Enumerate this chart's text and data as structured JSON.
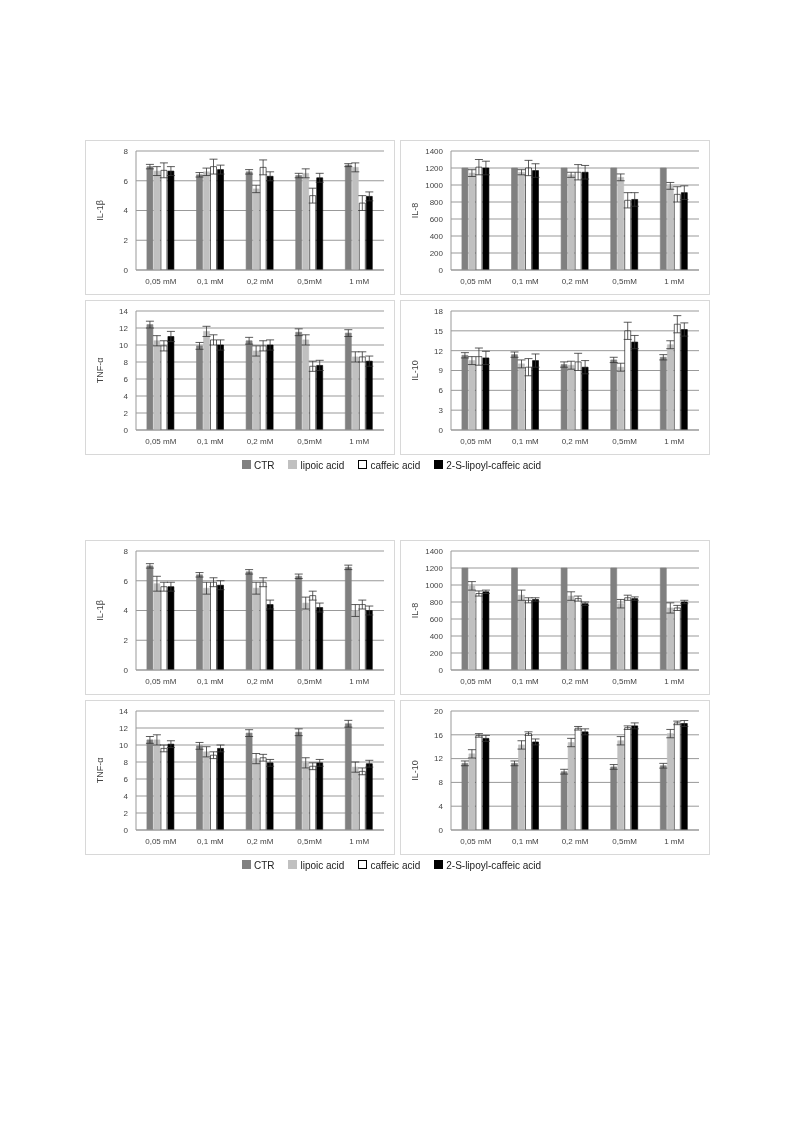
{
  "chart_data": [
    {
      "type": "bar",
      "ylabel": "IL-1β",
      "categories": [
        "0,05 mM",
        "0,1 mM",
        "0,2 mM",
        "0,5mM",
        "1 mM"
      ],
      "ylim": [
        0,
        8
      ],
      "yticks": [
        0,
        2,
        4,
        6,
        8
      ],
      "grid": "y",
      "series": [
        {
          "color": "#808080",
          "values": [
            6.95,
            6.4,
            6.6,
            6.35,
            7.05
          ],
          "errors": [
            0.15,
            0.15,
            0.15,
            0.15,
            0.1
          ]
        },
        {
          "color": "#c0c0c0",
          "values": [
            6.65,
            6.6,
            5.45,
            6.5,
            6.9
          ],
          "errors": [
            0.3,
            0.25,
            0.25,
            0.3,
            0.3
          ]
        },
        {
          "color": "#ffffff",
          "values": [
            6.7,
            6.95,
            6.9,
            5.0,
            4.5
          ],
          "errors": [
            0.5,
            0.5,
            0.5,
            0.5,
            0.5
          ]
        },
        {
          "color": "#000000",
          "values": [
            6.65,
            6.75,
            6.3,
            6.2,
            4.95
          ],
          "errors": [
            0.3,
            0.3,
            0.3,
            0.3,
            0.3
          ]
        }
      ]
    },
    {
      "type": "bar",
      "ylabel": "IL-8",
      "categories": [
        "0,05 mM",
        "0,1 mM",
        "0,2 mM",
        "0,5mM",
        "1 mM"
      ],
      "ylim": [
        0,
        1400
      ],
      "yticks": [
        0,
        200,
        400,
        600,
        800,
        1000,
        1200,
        1400
      ],
      "grid": "y",
      "series": [
        {
          "color": "#808080",
          "values": [
            1200,
            1200,
            1200,
            1200,
            1200
          ]
        },
        {
          "color": "#c0c0c0",
          "values": [
            1140,
            1150,
            1120,
            1090,
            990
          ],
          "errors": [
            40,
            30,
            30,
            40,
            40
          ]
        },
        {
          "color": "#ffffff",
          "values": [
            1210,
            1200,
            1150,
            820,
            890
          ],
          "errors": [
            90,
            90,
            90,
            90,
            90
          ]
        },
        {
          "color": "#000000",
          "values": [
            1200,
            1170,
            1150,
            830,
            910
          ],
          "errors": [
            80,
            80,
            80,
            80,
            80
          ]
        }
      ]
    },
    {
      "type": "bar",
      "ylabel": "TNF-α",
      "categories": [
        "0,05 mM",
        "0,1 mM",
        "0,2 mM",
        "0,5mM",
        "1 mM"
      ],
      "ylim": [
        0,
        14
      ],
      "yticks": [
        0,
        2,
        4,
        6,
        8,
        10,
        12,
        14
      ],
      "grid": "y",
      "legend": "bottom",
      "series": [
        {
          "name": "CTR",
          "color": "#808080",
          "values": [
            12.4,
            9.9,
            10.5,
            11.5,
            11.4
          ],
          "errors": [
            0.4,
            0.4,
            0.4,
            0.4,
            0.4
          ]
        },
        {
          "name": "lipoic acid",
          "color": "#c0c0c0",
          "values": [
            10.5,
            11.6,
            9.3,
            10.6,
            8.6
          ],
          "errors": [
            0.6,
            0.6,
            0.6,
            0.6,
            0.6
          ]
        },
        {
          "name": "caffeic acid",
          "color": "#ffffff",
          "values": [
            9.9,
            10.6,
            9.9,
            7.5,
            8.6
          ],
          "errors": [
            0.6,
            0.6,
            0.6,
            0.6,
            0.6
          ]
        },
        {
          "name": "2-S-lipoyl-caffeic acid",
          "color": "#000000",
          "values": [
            11.0,
            10.0,
            10.0,
            7.6,
            8.1
          ],
          "errors": [
            0.6,
            0.6,
            0.6,
            0.6,
            0.6
          ]
        }
      ]
    },
    {
      "type": "bar",
      "ylabel": "IL-10",
      "categories": [
        "0,05 mM",
        "0,1 mM",
        "0,2 mM",
        "0,5mM",
        "1 mM"
      ],
      "ylim": [
        0,
        18
      ],
      "yticks": [
        0,
        3,
        6,
        9,
        12,
        15,
        18
      ],
      "grid": "y",
      "series": [
        {
          "color": "#808080",
          "values": [
            11.3,
            11.4,
            9.9,
            10.6,
            11.0
          ],
          "errors": [
            0.4,
            0.4,
            0.4,
            0.4,
            0.4
          ]
        },
        {
          "color": "#c0c0c0",
          "values": [
            10.5,
            10.0,
            9.8,
            9.5,
            12.9
          ],
          "errors": [
            0.6,
            0.6,
            0.6,
            0.6,
            0.6
          ]
        },
        {
          "color": "#ffffff",
          "values": [
            11.1,
            9.5,
            10.3,
            15.0,
            16.0
          ],
          "errors": [
            1.3,
            1.3,
            1.3,
            1.3,
            1.3
          ]
        },
        {
          "color": "#000000",
          "values": [
            10.9,
            10.5,
            9.5,
            13.3,
            15.2
          ],
          "errors": [
            1.0,
            1.0,
            1.0,
            1.0,
            1.0
          ]
        }
      ]
    },
    {
      "type": "bar",
      "ylabel": "IL-1β",
      "categories": [
        "0,05 mM",
        "0,1 mM",
        "0,2 mM",
        "0,5mM",
        "1 mM"
      ],
      "ylim": [
        0,
        8
      ],
      "yticks": [
        0,
        2,
        4,
        6,
        8
      ],
      "grid": "y",
      "series": [
        {
          "color": "#808080",
          "values": [
            7.0,
            6.4,
            6.6,
            6.3,
            6.9
          ],
          "errors": [
            0.15,
            0.15,
            0.15,
            0.15,
            0.15
          ]
        },
        {
          "color": "#c0c0c0",
          "values": [
            5.8,
            5.5,
            5.5,
            4.5,
            4.0
          ],
          "errors": [
            0.5,
            0.4,
            0.4,
            0.4,
            0.4
          ]
        },
        {
          "color": "#ffffff",
          "values": [
            5.6,
            5.9,
            5.9,
            5.0,
            4.4
          ],
          "errors": [
            0.3,
            0.3,
            0.3,
            0.3,
            0.3
          ]
        },
        {
          "color": "#000000",
          "values": [
            5.6,
            5.7,
            4.4,
            4.2,
            4.0
          ],
          "errors": [
            0.3,
            0.3,
            0.3,
            0.3,
            0.3
          ]
        }
      ]
    },
    {
      "type": "bar",
      "ylabel": "IL-8",
      "categories": [
        "0,05 mM",
        "0,1 mM",
        "0,2 mM",
        "0,5mM",
        "1 mM"
      ],
      "ylim": [
        0,
        1400
      ],
      "yticks": [
        0,
        200,
        400,
        600,
        800,
        1000,
        1200,
        1400
      ],
      "grid": "y",
      "series": [
        {
          "color": "#808080",
          "values": [
            1200,
            1200,
            1200,
            1200,
            1200
          ]
        },
        {
          "color": "#c0c0c0",
          "values": [
            990,
            880,
            870,
            780,
            730
          ],
          "errors": [
            50,
            60,
            50,
            50,
            60
          ]
        },
        {
          "color": "#ffffff",
          "values": [
            900,
            820,
            840,
            850,
            730
          ],
          "errors": [
            30,
            30,
            30,
            30,
            30
          ]
        },
        {
          "color": "#000000",
          "values": [
            920,
            830,
            780,
            840,
            800
          ],
          "errors": [
            20,
            20,
            20,
            20,
            20
          ]
        }
      ]
    },
    {
      "type": "bar",
      "ylabel": "TNF-α",
      "categories": [
        "0,05 mM",
        "0,1 mM",
        "0,2 mM",
        "0,5mM",
        "1 mM"
      ],
      "ylim": [
        0,
        14
      ],
      "yticks": [
        0,
        2,
        4,
        6,
        8,
        10,
        12,
        14
      ],
      "grid": "y",
      "legend": "bottom",
      "series": [
        {
          "name": "CTR",
          "color": "#808080",
          "values": [
            10.6,
            9.9,
            11.4,
            11.5,
            12.5
          ],
          "errors": [
            0.4,
            0.4,
            0.4,
            0.4,
            0.4
          ]
        },
        {
          "name": "lipoic acid",
          "color": "#c0c0c0",
          "values": [
            10.6,
            9.2,
            8.4,
            7.9,
            7.4
          ],
          "errors": [
            0.6,
            0.6,
            0.6,
            0.6,
            0.6
          ]
        },
        {
          "name": "caffeic acid",
          "color": "#ffffff",
          "values": [
            9.6,
            8.8,
            8.5,
            7.5,
            6.9
          ],
          "errors": [
            0.4,
            0.4,
            0.4,
            0.4,
            0.4
          ]
        },
        {
          "name": "2-S-lipoyl-caffeic acid",
          "color": "#000000",
          "values": [
            10.1,
            9.6,
            7.9,
            7.9,
            7.8
          ],
          "errors": [
            0.4,
            0.4,
            0.4,
            0.4,
            0.4
          ]
        }
      ]
    },
    {
      "type": "bar",
      "ylabel": "IL-10",
      "categories": [
        "0,05 mM",
        "0,1 mM",
        "0,2 mM",
        "0,5mM",
        "1 mM"
      ],
      "ylim": [
        0,
        20
      ],
      "yticks": [
        0,
        4,
        8,
        12,
        16,
        20
      ],
      "grid": "y",
      "series": [
        {
          "color": "#808080",
          "values": [
            11.2,
            11.2,
            9.8,
            10.6,
            10.8
          ],
          "errors": [
            0.4,
            0.4,
            0.4,
            0.4,
            0.4
          ]
        },
        {
          "color": "#c0c0c0",
          "values": [
            12.8,
            14.3,
            14.7,
            15.0,
            16.2
          ],
          "errors": [
            0.7,
            0.7,
            0.7,
            0.7,
            0.7
          ]
        },
        {
          "color": "#ffffff",
          "values": [
            15.9,
            16.2,
            17.1,
            17.2,
            18.0
          ],
          "errors": [
            0.3,
            0.3,
            0.3,
            0.3,
            0.3
          ]
        },
        {
          "color": "#000000",
          "values": [
            15.4,
            14.8,
            16.5,
            17.5,
            17.9
          ],
          "errors": [
            0.5,
            0.5,
            0.5,
            0.5,
            0.5
          ]
        }
      ]
    }
  ]
}
